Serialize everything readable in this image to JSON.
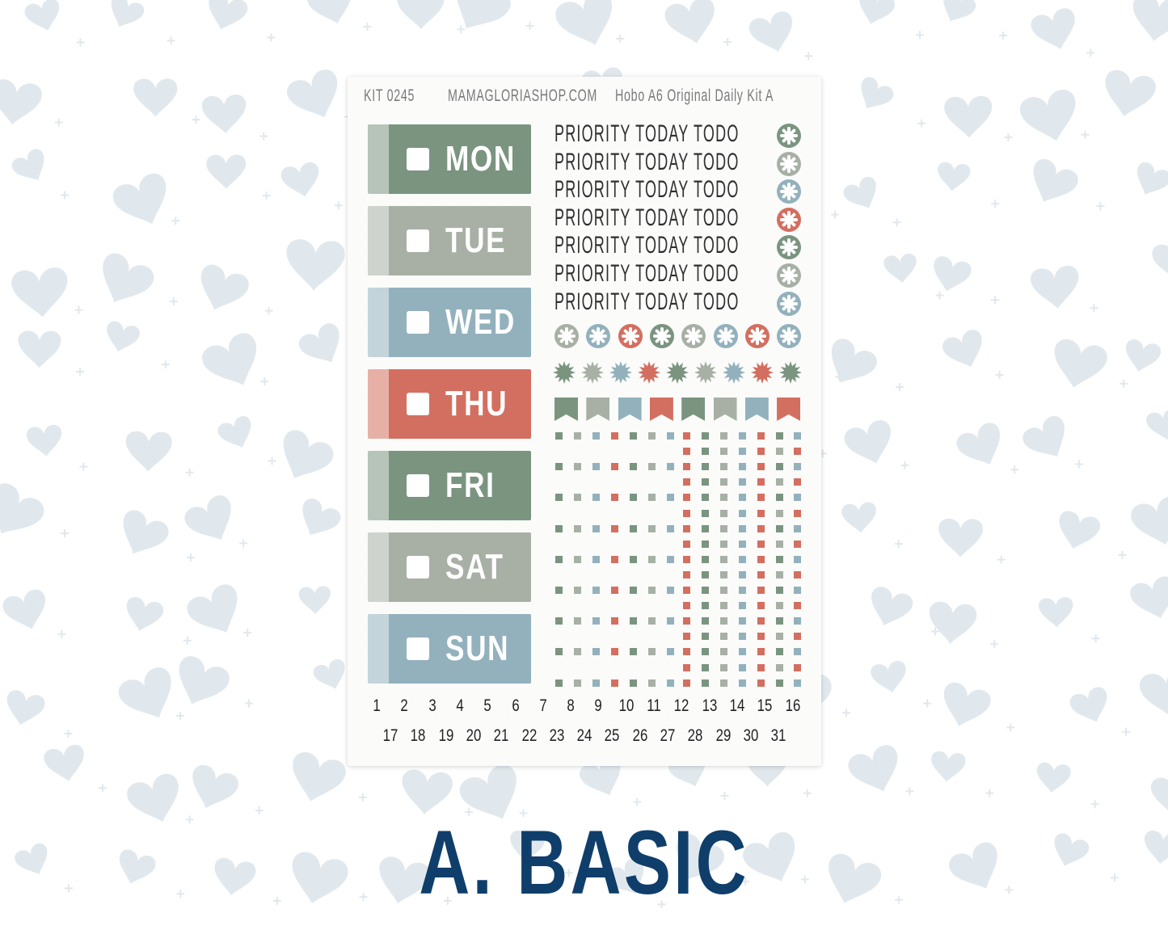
{
  "header": {
    "kit": "KIT 0245",
    "shop": "MAMAGLORIASHOP.COM",
    "product": "Hobo A6 Original Daily Kit A"
  },
  "colors": {
    "green": "#7a9480",
    "gray": "#a8b0a6",
    "blue": "#93b1bd",
    "red": "#d36f60",
    "title": "#0f3e6b",
    "hearts": "#e1e8ed"
  },
  "days": [
    {
      "label": "MON",
      "color": "green"
    },
    {
      "label": "TUE",
      "color": "gray"
    },
    {
      "label": "WED",
      "color": "blue"
    },
    {
      "label": "THU",
      "color": "red"
    },
    {
      "label": "FRI",
      "color": "green"
    },
    {
      "label": "SAT",
      "color": "gray"
    },
    {
      "label": "SUN",
      "color": "blue"
    }
  ],
  "priority_rows": [
    {
      "text": "PRIORITY TODAY TODO",
      "color": "green"
    },
    {
      "text": "PRIORITY TODAY TODO",
      "color": "gray"
    },
    {
      "text": "PRIORITY TODAY TODO",
      "color": "blue"
    },
    {
      "text": "PRIORITY TODAY TODO",
      "color": "red"
    },
    {
      "text": "PRIORITY TODAY TODO",
      "color": "green"
    },
    {
      "text": "PRIORITY TODAY TODO",
      "color": "gray"
    },
    {
      "text": "PRIORITY TODAY TODO",
      "color": "blue"
    }
  ],
  "icon_circles": [
    "gray",
    "blue",
    "red",
    "green",
    "gray",
    "blue",
    "red",
    "blue"
  ],
  "starbursts": [
    "green",
    "gray",
    "blue",
    "red",
    "green",
    "gray",
    "blue",
    "red",
    "green"
  ],
  "flags": [
    "green",
    "gray",
    "blue",
    "red",
    "green",
    "gray",
    "blue",
    "red"
  ],
  "dates_row1": [
    "1",
    "2",
    "3",
    "4",
    "5",
    "6",
    "7",
    "8",
    "9",
    "10",
    "11",
    "12",
    "13",
    "14",
    "15",
    "16"
  ],
  "dates_row2": [
    "17",
    "18",
    "19",
    "20",
    "21",
    "22",
    "23",
    "24",
    "25",
    "26",
    "27",
    "28",
    "29",
    "30",
    "31"
  ],
  "title": "A. BASIC"
}
